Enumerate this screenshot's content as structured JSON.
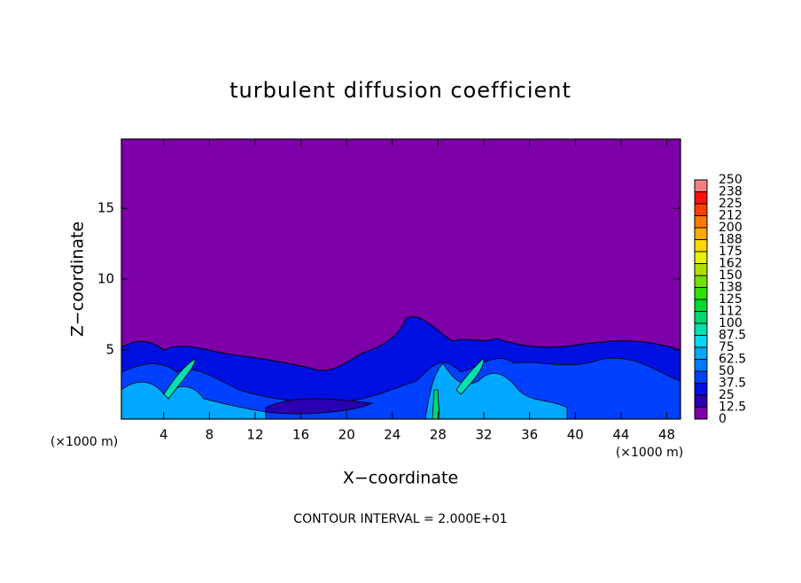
{
  "chart_data": {
    "type": "contour",
    "title": "turbulent diffusion coefficient",
    "xlabel": "X−coordinate",
    "ylabel": "Z−coordinate",
    "x_unit_label": "(×1000 m)",
    "y_unit_label": "(×1000 m)",
    "footnote": "CONTOUR INTERVAL = 2.000E+01",
    "xlim": [
      0.3,
      49.2
    ],
    "xticks": [
      4,
      8,
      12,
      16,
      20,
      24,
      28,
      32,
      36,
      40,
      44,
      48
    ],
    "ylim": [
      0.1,
      19.9
    ],
    "yticks": [
      5,
      10,
      15
    ],
    "colorbar": {
      "levels": [
        0,
        12.5,
        25,
        37.5,
        50,
        62.5,
        75,
        87.5,
        100,
        112,
        125,
        138,
        150,
        162,
        175,
        188,
        200,
        212,
        225,
        238,
        250
      ],
      "colors": [
        "#7d00a8",
        "#2a00b0",
        "#0010e0",
        "#0040ff",
        "#0078ff",
        "#00a8ff",
        "#00d8f0",
        "#00e0b0",
        "#00d870",
        "#00d830",
        "#30e000",
        "#70e000",
        "#b0e000",
        "#e8f000",
        "#ffd800",
        "#ffa800",
        "#ff7800",
        "#ff4000",
        "#ff1010",
        "#f08080"
      ]
    }
  }
}
